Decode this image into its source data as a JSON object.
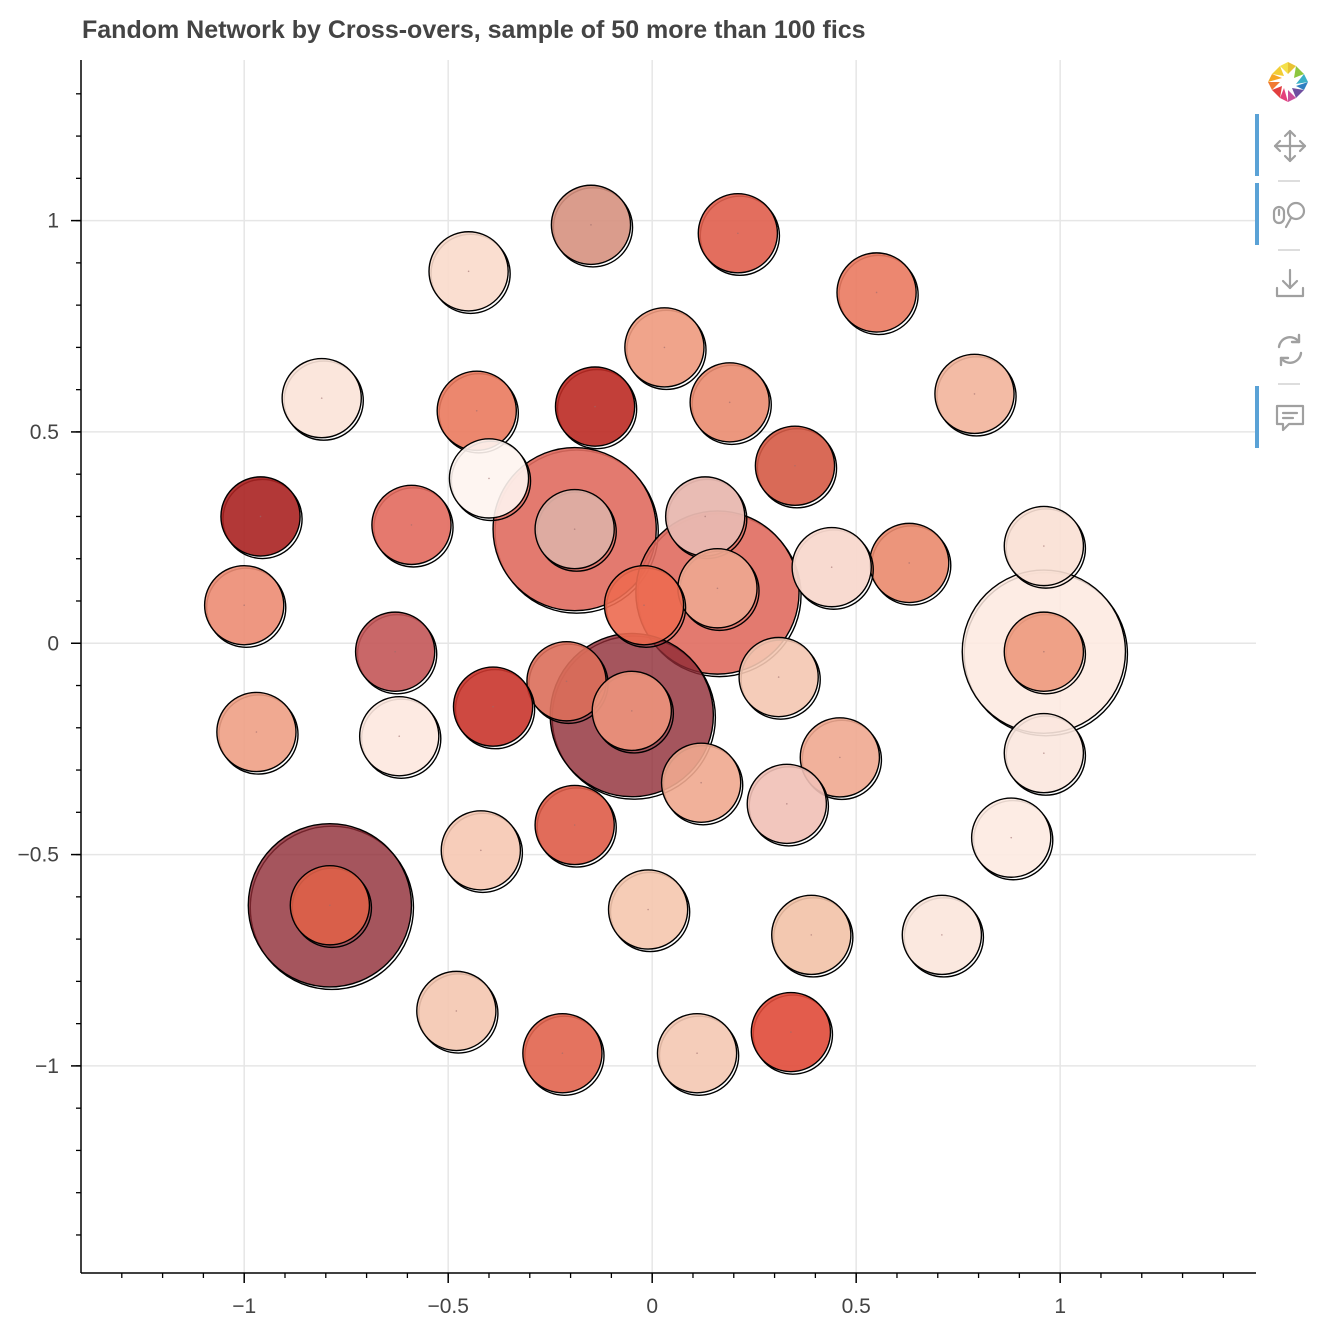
{
  "title": "Fandom Network by Cross-overs, sample of 50 more than 100 fics",
  "toolbar": {
    "logo": "bokeh-logo-icon",
    "tools": [
      {
        "name": "pan-tool",
        "icon": "pan-icon",
        "active": true
      },
      {
        "name": "wheel-zoom-tool",
        "icon": "wheel-zoom-icon",
        "active": true
      },
      {
        "name": "save-tool",
        "icon": "save-icon",
        "active": false
      },
      {
        "name": "reset-tool",
        "icon": "reset-icon",
        "active": false
      },
      {
        "name": "hover-tool",
        "icon": "hover-icon",
        "active": true
      }
    ],
    "active_color": "#5aa2d6"
  },
  "chart_data": {
    "type": "scatter",
    "title": "Fandom Network by Cross-overs, sample of 50 more than 100 fics",
    "xlabel": "",
    "ylabel": "",
    "xlim": [
      -1.4,
      1.48
    ],
    "ylim": [
      -1.49,
      1.38
    ],
    "grid": true,
    "x_ticks": [
      -1,
      -0.5,
      0,
      0.5,
      1
    ],
    "x_tick_labels": [
      "−1",
      "−0.5",
      "0",
      "0.5",
      "1"
    ],
    "y_ticks": [
      1,
      0.5,
      0,
      -0.5,
      -1
    ],
    "y_tick_labels": [
      "1",
      "0.5",
      "0",
      "−0.5",
      "−1"
    ],
    "colors": {
      "grid": "#e6e6e6",
      "axis": "#000000",
      "node_outline": "#000000"
    },
    "nodes": [
      {
        "x": -0.19,
        "y": 0.27,
        "r": 0.2,
        "color": "#e06b5f",
        "alpha": 0.9
      },
      {
        "x": 0.16,
        "y": 0.12,
        "r": 0.2,
        "color": "#e06b5f",
        "alpha": 0.9
      },
      {
        "x": -0.05,
        "y": -0.17,
        "r": 0.2,
        "color": "#8e2a35",
        "alpha": 0.8
      },
      {
        "x": -0.79,
        "y": -0.62,
        "r": 0.2,
        "color": "#8e2a35",
        "alpha": 0.8
      },
      {
        "x": 0.96,
        "y": -0.02,
        "r": 0.2,
        "color": "#fde9df",
        "alpha": 0.85
      },
      {
        "x": -0.15,
        "y": 0.99,
        "r": 0.097,
        "color": "#d6917f",
        "alpha": 0.9
      },
      {
        "x": 0.21,
        "y": 0.97,
        "r": 0.097,
        "color": "#e05e4d",
        "alpha": 0.9
      },
      {
        "x": -0.45,
        "y": 0.88,
        "r": 0.097,
        "color": "#f9dacb",
        "alpha": 0.9
      },
      {
        "x": 0.55,
        "y": 0.83,
        "r": 0.097,
        "color": "#ea7a60",
        "alpha": 0.9
      },
      {
        "x": 0.03,
        "y": 0.7,
        "r": 0.097,
        "color": "#ee9a7e",
        "alpha": 0.9
      },
      {
        "x": -0.81,
        "y": 0.58,
        "r": 0.097,
        "color": "#fbe3d8",
        "alpha": 0.9
      },
      {
        "x": 0.79,
        "y": 0.59,
        "r": 0.097,
        "color": "#f2b49b",
        "alpha": 0.9
      },
      {
        "x": -0.43,
        "y": 0.55,
        "r": 0.097,
        "color": "#ea7a5e",
        "alpha": 0.9
      },
      {
        "x": -0.14,
        "y": 0.56,
        "r": 0.097,
        "color": "#bb2a24",
        "alpha": 0.9
      },
      {
        "x": 0.19,
        "y": 0.57,
        "r": 0.097,
        "color": "#ea8c70",
        "alpha": 0.9
      },
      {
        "x": 0.35,
        "y": 0.42,
        "r": 0.097,
        "color": "#d55a45",
        "alpha": 0.9
      },
      {
        "x": -0.4,
        "y": 0.39,
        "r": 0.097,
        "color": "#fef4f0",
        "alpha": 0.9
      },
      {
        "x": -0.96,
        "y": 0.3,
        "r": 0.097,
        "color": "#aa2221",
        "alpha": 0.9
      },
      {
        "x": -0.59,
        "y": 0.28,
        "r": 0.097,
        "color": "#e26a5e",
        "alpha": 0.9
      },
      {
        "x": -0.19,
        "y": 0.27,
        "r": 0.097,
        "color": "#ddaea3",
        "alpha": 0.95
      },
      {
        "x": 0.13,
        "y": 0.3,
        "r": 0.097,
        "color": "#e8b8b0",
        "alpha": 0.95
      },
      {
        "x": 0.96,
        "y": 0.23,
        "r": 0.097,
        "color": "#f9e0d4",
        "alpha": 0.9
      },
      {
        "x": 0.63,
        "y": 0.19,
        "r": 0.097,
        "color": "#ea8a6d",
        "alpha": 0.9
      },
      {
        "x": 0.44,
        "y": 0.18,
        "r": 0.097,
        "color": "#f8d8ce",
        "alpha": 0.95
      },
      {
        "x": 0.16,
        "y": 0.13,
        "r": 0.097,
        "color": "#eda58e",
        "alpha": 0.95
      },
      {
        "x": -1.0,
        "y": 0.09,
        "r": 0.097,
        "color": "#ec8c73",
        "alpha": 0.9
      },
      {
        "x": -0.02,
        "y": 0.09,
        "r": 0.097,
        "color": "#ec6a50",
        "alpha": 0.9
      },
      {
        "x": -0.63,
        "y": -0.02,
        "r": 0.097,
        "color": "#c35658",
        "alpha": 0.9
      },
      {
        "x": 0.96,
        "y": -0.02,
        "r": 0.097,
        "color": "#ee9d82",
        "alpha": 0.95
      },
      {
        "x": 0.31,
        "y": -0.08,
        "r": 0.097,
        "color": "#f4c7b1",
        "alpha": 0.9
      },
      {
        "x": -0.21,
        "y": -0.09,
        "r": 0.097,
        "color": "#dc6e5a",
        "alpha": 0.9
      },
      {
        "x": -0.39,
        "y": -0.15,
        "r": 0.097,
        "color": "#c9352c",
        "alpha": 0.9
      },
      {
        "x": -0.05,
        "y": -0.16,
        "r": 0.097,
        "color": "#e9907a",
        "alpha": 0.95
      },
      {
        "x": -0.97,
        "y": -0.21,
        "r": 0.097,
        "color": "#eea085",
        "alpha": 0.9
      },
      {
        "x": -0.62,
        "y": -0.22,
        "r": 0.097,
        "color": "#fde8df",
        "alpha": 0.9
      },
      {
        "x": 0.96,
        "y": -0.26,
        "r": 0.097,
        "color": "#fbe7de",
        "alpha": 0.9
      },
      {
        "x": 0.46,
        "y": -0.27,
        "r": 0.097,
        "color": "#efa990",
        "alpha": 0.9
      },
      {
        "x": 0.12,
        "y": -0.33,
        "r": 0.097,
        "color": "#efa88f",
        "alpha": 0.9
      },
      {
        "x": 0.33,
        "y": -0.38,
        "r": 0.097,
        "color": "#f1c0b6",
        "alpha": 0.9
      },
      {
        "x": -0.19,
        "y": -0.43,
        "r": 0.097,
        "color": "#de5c48",
        "alpha": 0.9
      },
      {
        "x": 0.88,
        "y": -0.46,
        "r": 0.097,
        "color": "#fdeae1",
        "alpha": 0.9
      },
      {
        "x": -0.42,
        "y": -0.49,
        "r": 0.097,
        "color": "#f6c8b2",
        "alpha": 0.9
      },
      {
        "x": -0.79,
        "y": -0.62,
        "r": 0.097,
        "color": "#df6148",
        "alpha": 0.9
      },
      {
        "x": -0.01,
        "y": -0.63,
        "r": 0.097,
        "color": "#f5c6ae",
        "alpha": 0.9
      },
      {
        "x": 0.39,
        "y": -0.69,
        "r": 0.097,
        "color": "#f2c2a7",
        "alpha": 0.9
      },
      {
        "x": 0.71,
        "y": -0.69,
        "r": 0.097,
        "color": "#fbe6dc",
        "alpha": 0.9
      },
      {
        "x": -0.48,
        "y": -0.87,
        "r": 0.097,
        "color": "#f4c6b0",
        "alpha": 0.9
      },
      {
        "x": -0.22,
        "y": -0.97,
        "r": 0.097,
        "color": "#e1644e",
        "alpha": 0.9
      },
      {
        "x": 0.11,
        "y": -0.97,
        "r": 0.097,
        "color": "#f4c8b2",
        "alpha": 0.9
      },
      {
        "x": 0.34,
        "y": -0.92,
        "r": 0.097,
        "color": "#e04a38",
        "alpha": 0.9
      }
    ]
  }
}
